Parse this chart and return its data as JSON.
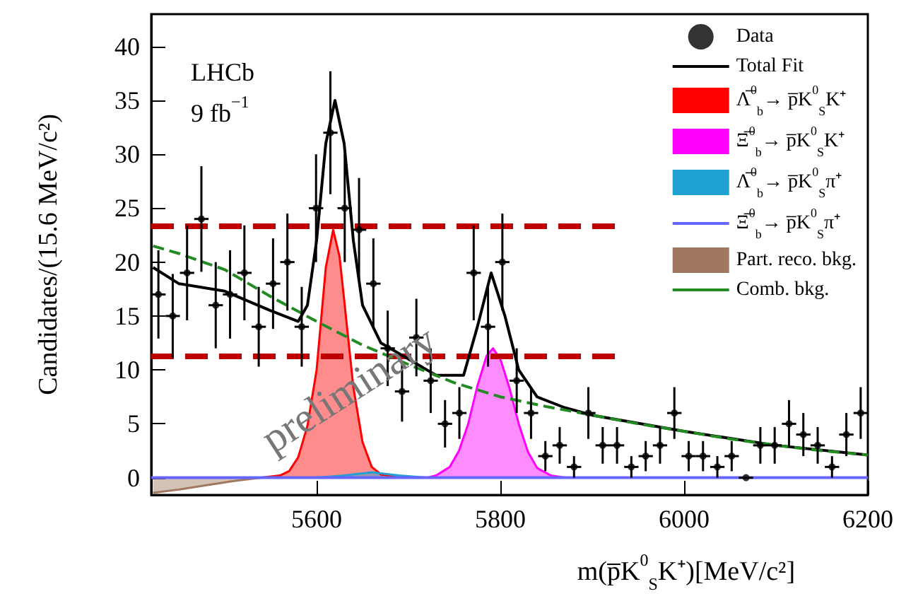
{
  "chart_data": {
    "type": "line",
    "xlabel": "m(p̅K$^{0}$$_{S}$K⁺)[MeV/c²]",
    "ylabel": "Candidates/(15.6 MeV/c²)",
    "annotations": [
      "LHCb",
      "9 fb$^{−1}$",
      "preliminary"
    ],
    "xlim": [
      5420,
      6200
    ],
    "xticks": [
      5600,
      5800,
      6000,
      6200
    ],
    "ylim": [
      -1.6,
      43
    ],
    "yticks": [
      0,
      5,
      10,
      15,
      20,
      25,
      30,
      35,
      40
    ],
    "legend": "top right",
    "ref_lines": [
      {
        "axis": "y",
        "value": 23.3,
        "color": "#c00000",
        "line_style": "dashed"
      },
      {
        "axis": "y",
        "value": 11.3,
        "color": "#c00000",
        "line_style": "dashed"
      }
    ],
    "series": [
      {
        "name": "Data",
        "type": "scatter",
        "marker": "circle",
        "color": "#000000",
        "x": [
          5427.8,
          5443.4,
          5459.0,
          5474.6,
          5490.2,
          5505.8,
          5521.4,
          5537.0,
          5552.6,
          5568.2,
          5583.8,
          5599.4,
          5615.0,
          5630.6,
          5646.2,
          5661.8,
          5677.4,
          5693.0,
          5708.6,
          5724.2,
          5739.8,
          5755.4,
          5771.0,
          5786.6,
          5802.2,
          5817.8,
          5833.4,
          5849.0,
          5864.6,
          5880.2,
          5895.8,
          5911.4,
          5927.0,
          5942.6,
          5958.2,
          5973.8,
          5989.4,
          6005.0,
          6020.6,
          6036.2,
          6051.8,
          6067.4,
          6083.0,
          6098.6,
          6114.2,
          6129.8,
          6145.4,
          6161.0,
          6176.6,
          6192.2
        ],
        "values": [
          17,
          15,
          19,
          24,
          16,
          17,
          19,
          14,
          18,
          20,
          14,
          25,
          32,
          25,
          23,
          18,
          12,
          8,
          13,
          9,
          5,
          6,
          19,
          14,
          20,
          9,
          6,
          2,
          3,
          1,
          6,
          3,
          3,
          1,
          2,
          3,
          6,
          2,
          2,
          1,
          2,
          0,
          3,
          3,
          5,
          4,
          3,
          1,
          4,
          6
        ],
        "errors": [
          4.1,
          3.9,
          4.4,
          4.9,
          4,
          4.1,
          4.4,
          3.7,
          4.2,
          4.5,
          3.7,
          5,
          5.7,
          5,
          4.8,
          4.2,
          3.5,
          2.8,
          3.6,
          3,
          2.2,
          2.4,
          4.4,
          3.7,
          4.5,
          3,
          2.4,
          1.4,
          1.7,
          1,
          2.4,
          1.7,
          1.7,
          1,
          1.4,
          1.7,
          2.4,
          1.4,
          1.4,
          1,
          1.4,
          null,
          1.7,
          1.7,
          2.2,
          2,
          1.7,
          1,
          2,
          2.4
        ],
        "xerrors": [
          7.8,
          7.8,
          7.8,
          7.8,
          7.8,
          7.8,
          7.8,
          7.8,
          7.8,
          7.8,
          7.8,
          7.8,
          7.8,
          7.8,
          7.8,
          7.8,
          7.8,
          7.8,
          7.8,
          7.8,
          7.8,
          7.8,
          7.8,
          7.8,
          7.8,
          7.8,
          7.8,
          7.8,
          7.8,
          7.8,
          7.8,
          7.8,
          7.8,
          7.8,
          7.8,
          7.8,
          7.8,
          7.8,
          7.8,
          7.8,
          7.8,
          7.8,
          7.8,
          7.8,
          7.8,
          7.8,
          7.8,
          7.8,
          7.8,
          7.8
        ]
      },
      {
        "name": "Total Fit",
        "color": "#000000",
        "x": [
          5422,
          5450,
          5500,
          5550,
          5580,
          5590,
          5600,
          5610,
          5620,
          5630,
          5640,
          5650,
          5670,
          5700,
          5730,
          5760,
          5775,
          5790,
          5805,
          5820,
          5840,
          5870,
          5900,
          6000,
          6100,
          6200
        ],
        "values": [
          19.5,
          18,
          17.3,
          15.5,
          14.5,
          16,
          22,
          31,
          35,
          31,
          22,
          16,
          12.5,
          11,
          9.5,
          9.5,
          14,
          19,
          15,
          10,
          7.5,
          6.5,
          5.8,
          4.3,
          3,
          2.1
        ]
      },
      {
        "name": "Λ̅$^{0}$$_{b}$→ p̅K$^{0}$$_{S}$K⁺",
        "type": "area",
        "color": "#ff0000",
        "x": [
          5540,
          5560,
          5570,
          5580,
          5590,
          5600,
          5610,
          5618,
          5625,
          5630,
          5640,
          5650,
          5660,
          5670,
          5690
        ],
        "values": [
          0,
          0.2,
          0.6,
          1.9,
          4.8,
          10,
          19.5,
          23,
          20.5,
          16.5,
          8.4,
          3.3,
          1,
          0.3,
          0
        ]
      },
      {
        "name": "Ξ̅$^{0}$$_{b}$→ p̅K$^{0}$$_{S}$K⁺",
        "type": "area",
        "color": "#ff00ff",
        "x": [
          5720,
          5730,
          5745,
          5755,
          5765,
          5775,
          5785,
          5792,
          5800,
          5810,
          5820,
          5830,
          5840,
          5855,
          5870
        ],
        "values": [
          0,
          0.2,
          1,
          2.5,
          5,
          8.5,
          11.3,
          12,
          11,
          8.3,
          5,
          2.4,
          0.9,
          0.2,
          0
        ]
      },
      {
        "name": "Λ̅$^{0}$$_{b}$→ p̅K$^{0}$$_{S}$π⁺",
        "type": "area",
        "color": "#1ea0d2",
        "x": [
          5600,
          5630,
          5660,
          5690,
          5720
        ],
        "values": [
          0,
          0.2,
          0.5,
          0.2,
          0
        ]
      },
      {
        "name": "Ξ̅$^{0}$$_{b}$→ p̅K$^{0}$$_{S}$π⁺",
        "type": "line",
        "color": "#6666ff",
        "x": [
          5420,
          6200
        ],
        "values": [
          0,
          0
        ]
      },
      {
        "name": "Part. reco. bkg.",
        "type": "area",
        "color": "#a07860",
        "x": [
          5422,
          5450,
          5480,
          5510,
          5540
        ],
        "values": [
          -1.4,
          -1.1,
          -0.7,
          -0.3,
          0
        ]
      },
      {
        "name": "Comb. bkg.",
        "type": "line",
        "line_style": "dashed",
        "color": "#228b22",
        "x": [
          5422,
          5450,
          5500,
          5550,
          5600,
          5650,
          5700,
          5750,
          5800,
          5850,
          5900,
          5950,
          6000,
          6050,
          6100,
          6150,
          6200
        ],
        "values": [
          21.5,
          20.8,
          19.3,
          16.8,
          14.5,
          12.3,
          10.5,
          8.8,
          7.5,
          6.6,
          5.8,
          5,
          4.3,
          3.6,
          3,
          2.5,
          2.1
        ]
      }
    ]
  }
}
